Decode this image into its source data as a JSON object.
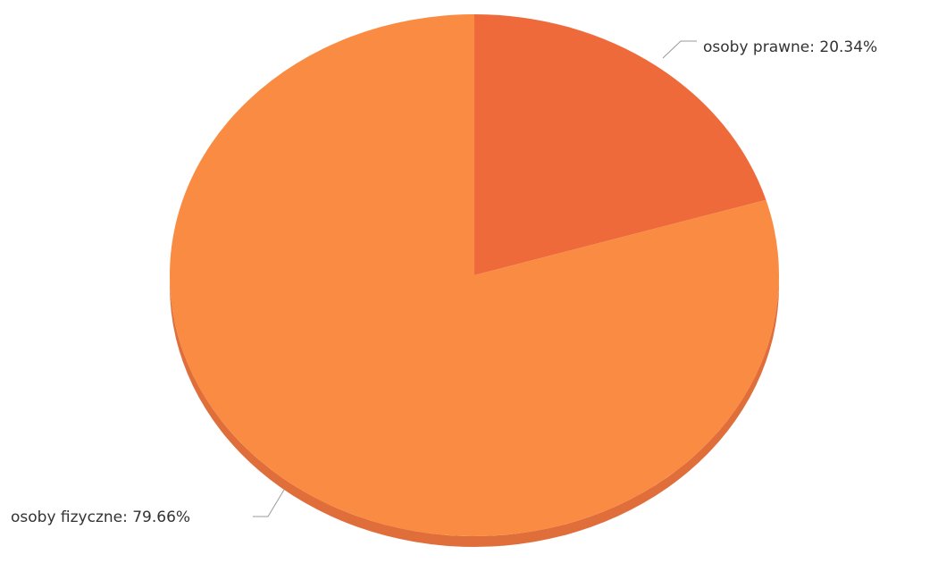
{
  "chart_data": {
    "type": "pie",
    "three_d": true,
    "legend": "none",
    "slices": [
      {
        "name": "osoby prawne",
        "value": 20.34,
        "label": "osoby prawne: 20.34%",
        "color": "#ef6a3a",
        "side_color": "#d9582e"
      },
      {
        "name": "osoby fizyczne",
        "value": 79.66,
        "label": "osoby fizyczne: 79.66%",
        "color": "#f98c42",
        "side_color": "#e06e3a"
      }
    ]
  }
}
